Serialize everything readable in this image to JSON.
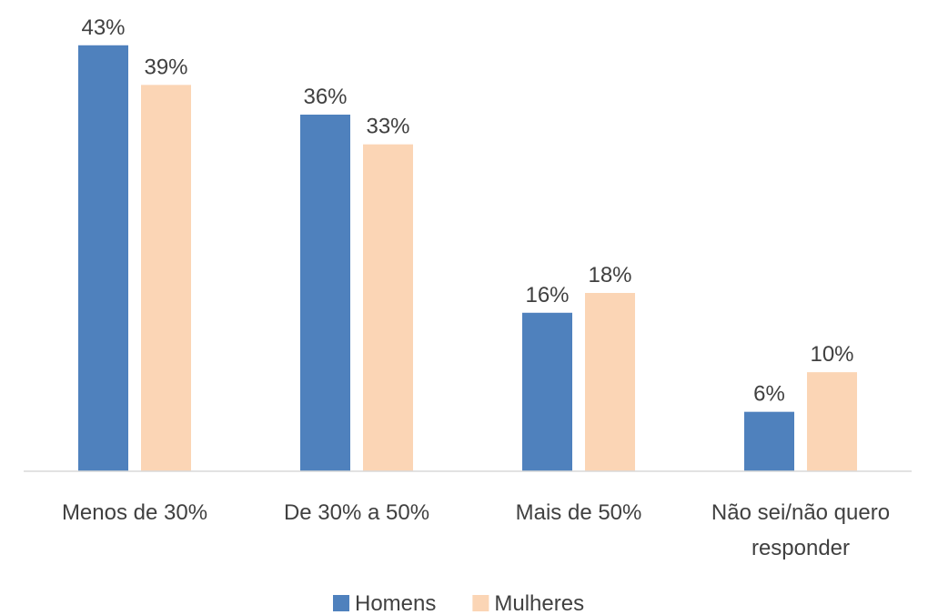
{
  "chart_data": {
    "type": "bar",
    "categories": [
      "Menos de 30%",
      "De 30% a 50%",
      "Mais de 50%",
      "Não sei/não quero responder"
    ],
    "series": [
      {
        "name": "Homens",
        "color": "#4f81bd",
        "values": [
          43,
          36,
          16,
          6
        ],
        "value_labels": [
          "43%",
          "36%",
          "16%",
          "6%"
        ]
      },
      {
        "name": "Mulheres",
        "color": "#fbd5b5",
        "values": [
          39,
          33,
          18,
          10
        ],
        "value_labels": [
          "39%",
          "33%",
          "18%",
          "10%"
        ]
      }
    ],
    "ylim": [
      0,
      45
    ],
    "legend": "bottom"
  }
}
